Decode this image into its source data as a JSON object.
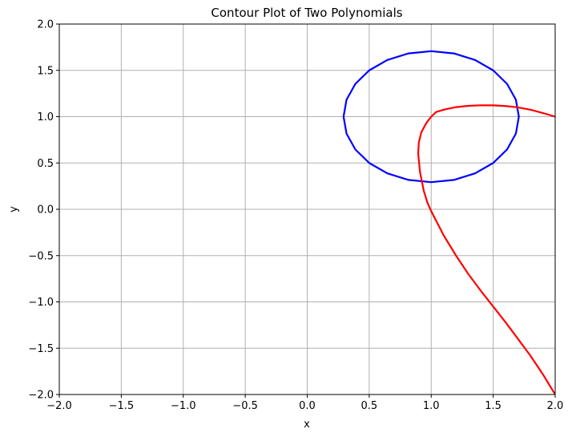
{
  "chart_data": {
    "type": "line",
    "title": "Contour Plot of Two Polynomials",
    "xlabel": "x",
    "ylabel": "y",
    "xlim": [
      -2,
      2
    ],
    "ylim": [
      -2,
      2
    ],
    "grid": true,
    "x_ticks": [
      "−2.0",
      "−1.5",
      "−1.0",
      "−0.5",
      "0.0",
      "0.5",
      "1.0",
      "1.5",
      "2.0"
    ],
    "y_ticks": [
      "−2.0",
      "−1.5",
      "−1.0",
      "−0.5",
      "0.0",
      "0.5",
      "1.0",
      "1.5",
      "2.0"
    ],
    "series": [
      {
        "color": "#0000ff",
        "points": [
          [
            1.707,
            1.0
          ],
          [
            1.683,
            1.183
          ],
          [
            1.612,
            1.354
          ],
          [
            1.5,
            1.5
          ],
          [
            1.354,
            1.612
          ],
          [
            1.183,
            1.683
          ],
          [
            1.0,
            1.707
          ],
          [
            0.817,
            1.683
          ],
          [
            0.646,
            1.612
          ],
          [
            0.5,
            1.5
          ],
          [
            0.388,
            1.354
          ],
          [
            0.317,
            1.183
          ],
          [
            0.293,
            1.0
          ],
          [
            0.317,
            0.817
          ],
          [
            0.388,
            0.646
          ],
          [
            0.5,
            0.5
          ],
          [
            0.646,
            0.388
          ],
          [
            0.817,
            0.317
          ],
          [
            1.0,
            0.293
          ],
          [
            1.183,
            0.317
          ],
          [
            1.354,
            0.388
          ],
          [
            1.5,
            0.5
          ],
          [
            1.612,
            0.646
          ],
          [
            1.683,
            0.817
          ],
          [
            1.707,
            1.0
          ]
        ]
      },
      {
        "color": "#ff0000",
        "points": [
          [
            2.0,
            1.0
          ],
          [
            1.9,
            1.04
          ],
          [
            1.8,
            1.075
          ],
          [
            1.7,
            1.1
          ],
          [
            1.6,
            1.115
          ],
          [
            1.5,
            1.122
          ],
          [
            1.4,
            1.123
          ],
          [
            1.3,
            1.117
          ],
          [
            1.2,
            1.103
          ],
          [
            1.1,
            1.075
          ],
          [
            1.04,
            1.05
          ],
          [
            1.0,
            1.0
          ],
          [
            0.96,
            0.93
          ],
          [
            0.92,
            0.83
          ],
          [
            0.9,
            0.72
          ],
          [
            0.895,
            0.6
          ],
          [
            0.91,
            0.4
          ],
          [
            0.94,
            0.2
          ],
          [
            0.97,
            0.07
          ],
          [
            1.0,
            -0.02
          ],
          [
            1.05,
            -0.15
          ],
          [
            1.1,
            -0.28
          ],
          [
            1.2,
            -0.5
          ],
          [
            1.3,
            -0.7
          ],
          [
            1.4,
            -0.88
          ],
          [
            1.5,
            -1.05
          ],
          [
            1.6,
            -1.22
          ],
          [
            1.7,
            -1.4
          ],
          [
            1.8,
            -1.58
          ],
          [
            1.9,
            -1.78
          ],
          [
            2.0,
            -2.0
          ]
        ]
      }
    ]
  }
}
